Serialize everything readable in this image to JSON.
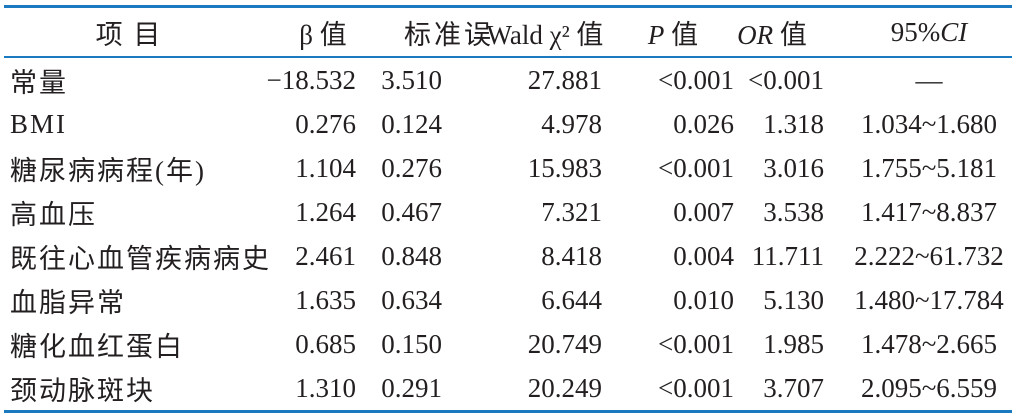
{
  "colors": {
    "rule": "#1b79c0",
    "text": "#231f20",
    "background": "#ffffff"
  },
  "table": {
    "header": {
      "item": "项 目",
      "beta": "β 值",
      "se": "标准误",
      "wald": "Wald χ² 值",
      "p_italic": "P",
      "p_rest": " 值",
      "or_italic": "OR",
      "or_rest": " 值",
      "ci_pre": "95%",
      "ci_italic": "CI"
    },
    "rows": [
      {
        "item": "常量",
        "beta": "−18.532",
        "se": "3.510",
        "wald": "27.881",
        "p": "<0.001",
        "or": "<0.001",
        "ci": "—"
      },
      {
        "item": "BMI",
        "beta": "0.276",
        "se": "0.124",
        "wald": "4.978",
        "p": "0.026",
        "or": "1.318",
        "ci": "1.034~1.680"
      },
      {
        "item": "糖尿病病程(年)",
        "beta": "1.104",
        "se": "0.276",
        "wald": "15.983",
        "p": "<0.001",
        "or": "3.016",
        "ci": "1.755~5.181"
      },
      {
        "item": "高血压",
        "beta": "1.264",
        "se": "0.467",
        "wald": "7.321",
        "p": "0.007",
        "or": "3.538",
        "ci": "1.417~8.837"
      },
      {
        "item": "既往心血管疾病病史",
        "beta": "2.461",
        "se": "0.848",
        "wald": "8.418",
        "p": "0.004",
        "or": "11.711",
        "ci": "2.222~61.732"
      },
      {
        "item": "血脂异常",
        "beta": "1.635",
        "se": "0.634",
        "wald": "6.644",
        "p": "0.010",
        "or": "5.130",
        "ci": "1.480~17.784"
      },
      {
        "item": "糖化血红蛋白",
        "beta": "0.685",
        "se": "0.150",
        "wald": "20.749",
        "p": "<0.001",
        "or": "1.985",
        "ci": "1.478~2.665"
      },
      {
        "item": "颈动脉斑块",
        "beta": "1.310",
        "se": "0.291",
        "wald": "20.249",
        "p": "<0.001",
        "or": "3.707",
        "ci": "2.095~6.559"
      }
    ]
  }
}
